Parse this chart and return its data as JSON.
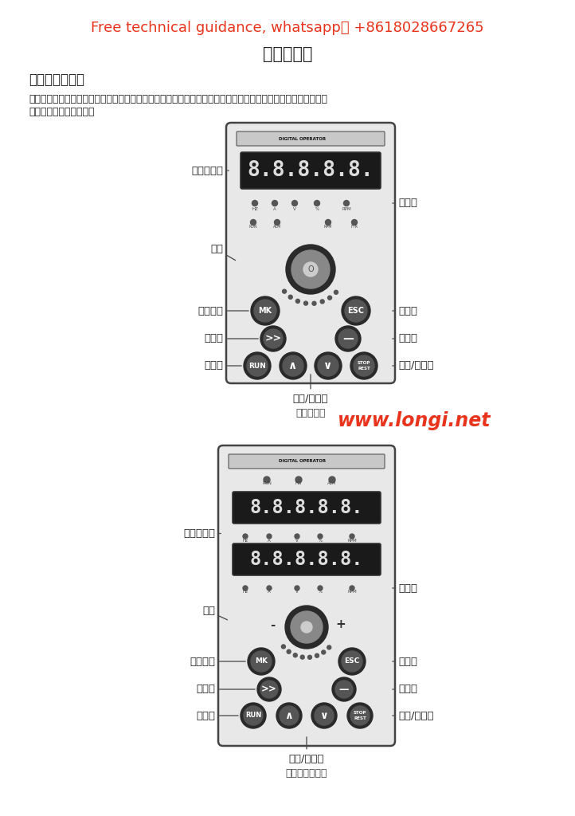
{
  "title_red": "Free technical guidance, whatsapp： +8618028667265",
  "title_main": "键盘与显示",
  "section_title": "操作与显示界面",
  "description_line1": "用操作面板，可对变频器进行功能参数修改、变频器工作状态监控和变频器运行控制（启动，停止）等操作，其外",
  "description_line2": "形及功能区如下图所示：",
  "caption1": "键盘示意图",
  "caption2": "双行键盘示意图",
  "watermark": "www.longi.net",
  "labels_left1": [
    "数据显示区",
    "旋酂",
    "多功能键",
    "移位键",
    "运行键"
  ],
  "labels_right1": [
    "指示灯",
    "取消键",
    "确认键",
    "停止/复位键"
  ],
  "bottom_label1": "递增/递减键",
  "labels_left2": [
    "数据显示区",
    "旋酂",
    "多功能键",
    "移位键",
    "运行键"
  ],
  "labels_right2": [
    "指示灯",
    "取消键",
    "确认键",
    "停止/复位键"
  ],
  "bottom_label2": "递增/递减键",
  "bg_color": "#ffffff",
  "text_color": "#222222",
  "red_color": "#e8341c",
  "panel_bg": "#e8e8e8",
  "panel_border": "#444444",
  "display_bg": "#1a1a1a",
  "display_fg": "#dddddd",
  "btn_outer": "#2a2a2a",
  "btn_inner": "#555555"
}
